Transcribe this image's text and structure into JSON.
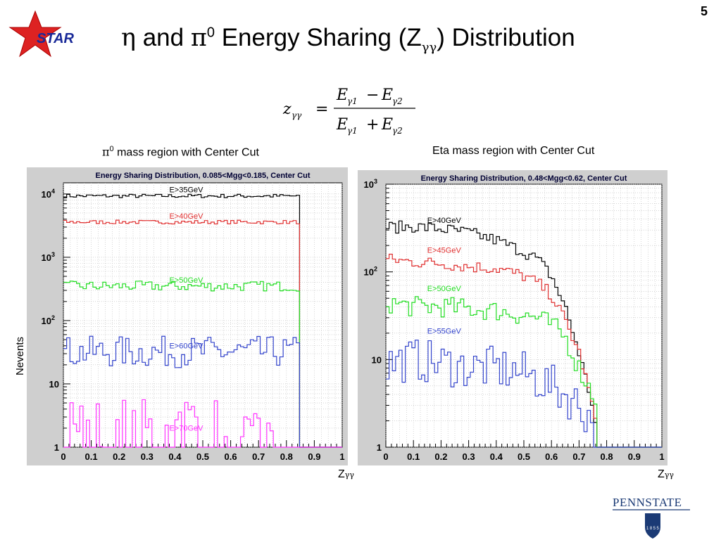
{
  "slide": {
    "number": "5",
    "title_eta": "η",
    "title_mid": " and ",
    "title_pi": "π",
    "title_sup": "0",
    "title_rest": " Energy Sharing (Z",
    "title_sub": "γγ",
    "title_end": ") Distribution",
    "logo_star_text": "STAR",
    "logo_pennstate_text": "PENNSTATE",
    "logo_pennstate_year": "1855"
  },
  "formula": {
    "lhs": "z",
    "lhs_sub": "γγ",
    "equals": "=",
    "numerator": "E",
    "num_sub1": "γ1",
    "num_op": "−",
    "num_sub2": "γ2",
    "denominator": "E",
    "den_sub1": "γ1",
    "den_op": "+",
    "den_sub2": "γ2"
  },
  "labels": {
    "left_panel_pi": "π",
    "left_panel_sup": "0",
    "left_panel_rest": " mass region with Center Cut",
    "right_panel": "Eta mass region with Center Cut",
    "ylabel": "Nevents",
    "xlabel": "Z",
    "xlabel_sub": "γγ"
  },
  "chart_data": [
    {
      "type": "line",
      "title": "Energy Sharing Distribution, 0.085<Mgg<0.185, Center Cut",
      "xlim": [
        0,
        1
      ],
      "ylim": [
        1,
        15000
      ],
      "yscale": "log",
      "grid": true,
      "x_ticks": [
        "0",
        "0.1",
        "0.2",
        "0.3",
        "0.4",
        "0.5",
        "0.6",
        "0.7",
        "0.8",
        "0.9",
        "1"
      ],
      "y_ticks": [
        {
          "value": 1,
          "label": "1"
        },
        {
          "value": 10,
          "label": "10"
        },
        {
          "value": 100,
          "label": "10",
          "sup": "2"
        },
        {
          "value": 1000,
          "label": "10",
          "sup": "3"
        },
        {
          "value": 10000,
          "label": "10",
          "sup": "4"
        }
      ],
      "series": [
        {
          "name": "E>35GeV",
          "color": "#000000",
          "level": 9300,
          "jitter": 0.03,
          "cutoff": 0.85
        },
        {
          "name": "E>40GeV",
          "color": "#e03030",
          "level": 3600,
          "jitter": 0.03,
          "cutoff": 0.85
        },
        {
          "name": "E>50GeV",
          "color": "#22dd22",
          "level": 350,
          "jitter": 0.08,
          "cutoff": 0.85
        },
        {
          "name": "E>60GeV",
          "color": "#3344cc",
          "level": 32,
          "jitter": 0.25,
          "cutoff": 0.85
        },
        {
          "name": "E>70GeV",
          "color": "#ff33ff",
          "level": 1.6,
          "jitter": 0.6,
          "cutoff": 0.85
        }
      ],
      "legend_y": [
        9300,
        3600,
        350,
        32,
        1.6
      ]
    },
    {
      "type": "line",
      "title": "Energy Sharing Distribution,  0.48<Mgg<0.62, Center Cut",
      "xlim": [
        0,
        1
      ],
      "ylim": [
        1,
        1000
      ],
      "yscale": "log",
      "grid": true,
      "x_ticks": [
        "0",
        "0.1",
        "0.2",
        "0.3",
        "0.4",
        "0.5",
        "0.6",
        "0.7",
        "0.8",
        "0.9",
        "1"
      ],
      "y_ticks": [
        {
          "value": 1,
          "label": "1"
        },
        {
          "value": 10,
          "label": "10"
        },
        {
          "value": 100,
          "label": "10",
          "sup": "2"
        },
        {
          "value": 1000,
          "label": "10",
          "sup": "3"
        }
      ],
      "series": [
        {
          "name": "E>40GeV",
          "color": "#000000",
          "points": [
            [
              0,
              320
            ],
            [
              0.1,
              330
            ],
            [
              0.2,
              310
            ],
            [
              0.3,
              280
            ],
            [
              0.4,
              230
            ],
            [
              0.5,
              170
            ],
            [
              0.55,
              140
            ],
            [
              0.6,
              90
            ],
            [
              0.65,
              40
            ],
            [
              0.7,
              12
            ],
            [
              0.75,
              3
            ],
            [
              0.77,
              1
            ]
          ]
        },
        {
          "name": "E>45GeV",
          "color": "#e03030",
          "points": [
            [
              0,
              140
            ],
            [
              0.1,
              130
            ],
            [
              0.2,
              125
            ],
            [
              0.3,
              115
            ],
            [
              0.4,
              110
            ],
            [
              0.5,
              90
            ],
            [
              0.55,
              75
            ],
            [
              0.6,
              55
            ],
            [
              0.65,
              28
            ],
            [
              0.7,
              12
            ],
            [
              0.75,
              3
            ],
            [
              0.77,
              1
            ]
          ]
        },
        {
          "name": "E>50GeV",
          "color": "#22dd22",
          "points": [
            [
              0,
              45
            ],
            [
              0.1,
              40
            ],
            [
              0.2,
              40
            ],
            [
              0.3,
              38
            ],
            [
              0.4,
              36
            ],
            [
              0.5,
              32
            ],
            [
              0.55,
              30
            ],
            [
              0.6,
              25
            ],
            [
              0.65,
              18
            ],
            [
              0.7,
              8
            ],
            [
              0.75,
              4
            ],
            [
              0.77,
              3
            ]
          ]
        },
        {
          "name": "E>55GeV",
          "color": "#3344cc",
          "points": [
            [
              0,
              9
            ],
            [
              0.1,
              10
            ],
            [
              0.2,
              9
            ],
            [
              0.3,
              8
            ],
            [
              0.4,
              8
            ],
            [
              0.5,
              7
            ],
            [
              0.55,
              6
            ],
            [
              0.6,
              5
            ],
            [
              0.65,
              4
            ],
            [
              0.7,
              3
            ],
            [
              0.75,
              2
            ],
            [
              0.77,
              1
            ]
          ]
        }
      ],
      "legend_y": [
        330,
        150,
        55,
        18
      ]
    }
  ],
  "colors": {
    "star_red": "#dd2222",
    "star_blue": "#1a2a99",
    "frame_bg": "#cfcfcf",
    "penn_blue": "#1b3a75"
  }
}
